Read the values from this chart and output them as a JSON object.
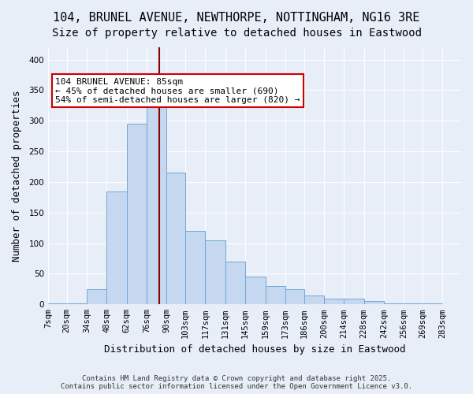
{
  "title_line1": "104, BRUNEL AVENUE, NEWTHORPE, NOTTINGHAM, NG16 3RE",
  "title_line2": "Size of property relative to detached houses in Eastwood",
  "xlabel": "Distribution of detached houses by size in Eastwood",
  "ylabel": "Number of detached properties",
  "bins": [
    7,
    20,
    34,
    48,
    62,
    76,
    90,
    103,
    117,
    131,
    145,
    159,
    173,
    186,
    200,
    214,
    228,
    242,
    256,
    269,
    283
  ],
  "bin_labels": [
    "7sqm",
    "20sqm",
    "34sqm",
    "48sqm",
    "62sqm",
    "76sqm",
    "90sqm",
    "103sqm",
    "117sqm",
    "131sqm",
    "145sqm",
    "159sqm",
    "173sqm",
    "186sqm",
    "200sqm",
    "214sqm",
    "228sqm",
    "242sqm",
    "256sqm",
    "269sqm",
    "283sqm"
  ],
  "values": [
    2,
    2,
    25,
    185,
    295,
    325,
    215,
    120,
    105,
    70,
    45,
    30,
    25,
    15,
    10,
    10,
    5,
    2,
    2,
    2
  ],
  "bar_color": "#c5d8f0",
  "bar_edge_color": "#6fa8d6",
  "vline_x": 85,
  "vline_color": "#8b0000",
  "annotation_text": "104 BRUNEL AVENUE: 85sqm\n← 45% of detached houses are smaller (690)\n54% of semi-detached houses are larger (820) →",
  "annotation_box_color": "#ffffff",
  "annotation_box_edge": "#cc0000",
  "ylim": [
    0,
    420
  ],
  "yticks": [
    0,
    50,
    100,
    150,
    200,
    250,
    300,
    350,
    400
  ],
  "background_color": "#e8eef8",
  "plot_bg_color": "#e8eef8",
  "footer_text": "Contains HM Land Registry data © Crown copyright and database right 2025.\nContains public sector information licensed under the Open Government Licence v3.0.",
  "title_fontsize": 11,
  "subtitle_fontsize": 10,
  "axis_label_fontsize": 9,
  "tick_fontsize": 7.5,
  "annotation_fontsize": 8
}
